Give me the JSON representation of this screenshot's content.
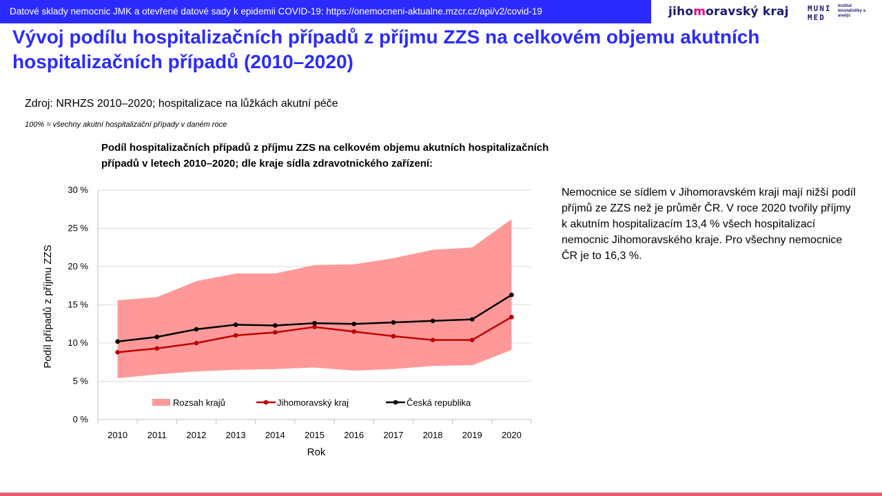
{
  "banner": {
    "text": "Datové sklady nemocnic JMK a otevřené datové sady k epidemii COVID-19: https://onemocneni-aktualne.mzcr.cz/api/v2/covid-19"
  },
  "logos": {
    "jmk_part1": "jiho",
    "jmk_accent": "m",
    "jmk_part2": "oravský kraj",
    "muni_line1": "MUNI",
    "muni_line2": "MED",
    "institute": "Institut biostatistiky a analýz"
  },
  "page": {
    "title": "Vývoj podílu hospitalizačních případů z příjmu ZZS na celkovém objemu akutních hospitalizačních případů (2010–2020)",
    "source": "Zdroj: NRHZS 2010–2020; hospitalizace na lůžkách akutní péče",
    "note": "100% = všechny akutní hospitalizační případy v daném roce",
    "side_text": "Nemocnice se sídlem v Jihomoravském kraji mají nižší podíl příjmů ze ZZS než je průměr ČR. V roce 2020 tvořily příjmy k akutním hospitalizacím 13,4 % všech hospitalizací nemocnic Jihomoravského kraje. Pro všechny nemocnice ČR je to 16,3 %."
  },
  "colors": {
    "banner": "#2b2bff",
    "title": "#2b2bff",
    "range_fill": "#ff9999",
    "jmk_line": "#c00000",
    "cr_line": "#000000",
    "footer": "#ea5a6f"
  },
  "chart_data": {
    "type": "line",
    "title": "Podíl hospitalizačních případů z příjmu ZZS na celkovém objemu akutních hospitalizačních případů v letech 2010–2020; dle kraje sídla zdravotnického zařízení:",
    "xlabel": "Rok",
    "ylabel": "Podíl případů z příjmu ZZS",
    "categories": [
      "2010",
      "2011",
      "2012",
      "2013",
      "2014",
      "2015",
      "2016",
      "2017",
      "2018",
      "2019",
      "2020"
    ],
    "ylim": [
      0,
      30
    ],
    "yticks": [
      0,
      5,
      10,
      15,
      20,
      25,
      30
    ],
    "ytick_labels": [
      "0 %",
      "5 %",
      "10 %",
      "15 %",
      "20 %",
      "25 %",
      "30 %"
    ],
    "grid": true,
    "legend_position": "bottom-inside",
    "range": {
      "name": "Rozsah krajů",
      "lower": [
        5.4,
        5.9,
        6.3,
        6.5,
        6.6,
        6.8,
        6.4,
        6.6,
        7.0,
        7.1,
        9.1
      ],
      "upper": [
        15.6,
        16.0,
        18.1,
        19.1,
        19.1,
        20.2,
        20.3,
        21.1,
        22.2,
        22.5,
        26.2
      ]
    },
    "series": [
      {
        "name": "Jihomoravský kraj",
        "values": [
          8.8,
          9.3,
          10.0,
          11.0,
          11.4,
          12.1,
          11.5,
          10.9,
          10.4,
          10.4,
          13.4
        ]
      },
      {
        "name": "Česká republika",
        "values": [
          10.2,
          10.8,
          11.8,
          12.4,
          12.3,
          12.6,
          12.5,
          12.7,
          12.9,
          13.1,
          16.3
        ]
      }
    ]
  }
}
